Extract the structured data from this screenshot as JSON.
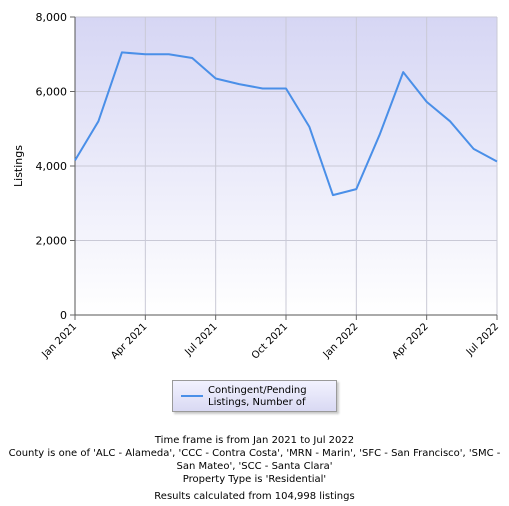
{
  "chart_data": {
    "type": "line",
    "ylabel": "Listings",
    "xlabel": "",
    "ylim": [
      0,
      8000
    ],
    "y_ticks": [
      "0",
      "2,000",
      "4,000",
      "6,000",
      "8,000"
    ],
    "y_tick_values": [
      0,
      2000,
      4000,
      6000,
      8000
    ],
    "x_ticks": [
      "Jan 2021",
      "Apr 2021",
      "Jul 2021",
      "Oct 2021",
      "Jan 2022",
      "Apr 2022",
      "Jul 2022"
    ],
    "x_tick_index": [
      0,
      3,
      6,
      9,
      12,
      15,
      18
    ],
    "grid": true,
    "legend_position": "bottom",
    "series": [
      {
        "name": "Contingent/Pending Listings, Number of",
        "color": "#4a8fe8",
        "x": [
          "Jan 2021",
          "Feb 2021",
          "Mar 2021",
          "Apr 2021",
          "May 2021",
          "Jun 2021",
          "Jul 2021",
          "Aug 2021",
          "Sep 2021",
          "Oct 2021",
          "Nov 2021",
          "Dec 2021",
          "Jan 2022",
          "Feb 2022",
          "Mar 2022",
          "Apr 2022",
          "May 2022",
          "Jun 2022",
          "Jul 2022"
        ],
        "values": [
          4150,
          5200,
          7050,
          7000,
          7000,
          6900,
          6350,
          6200,
          6080,
          6080,
          5050,
          3220,
          3380,
          4850,
          6520,
          5720,
          5200,
          4460,
          4120
        ]
      }
    ]
  },
  "footer": {
    "time_frame": "Time frame is from Jan 2021 to Jul 2022",
    "county": "County is one of 'ALC - Alameda', 'CCC - Contra Costa', 'MRN - Marin', 'SFC - San Francisco', 'SMC - San Mateo', 'SCC - Santa Clara'",
    "property_type": "Property Type is 'Residential'",
    "results": "Results calculated from 104,998 listings"
  }
}
